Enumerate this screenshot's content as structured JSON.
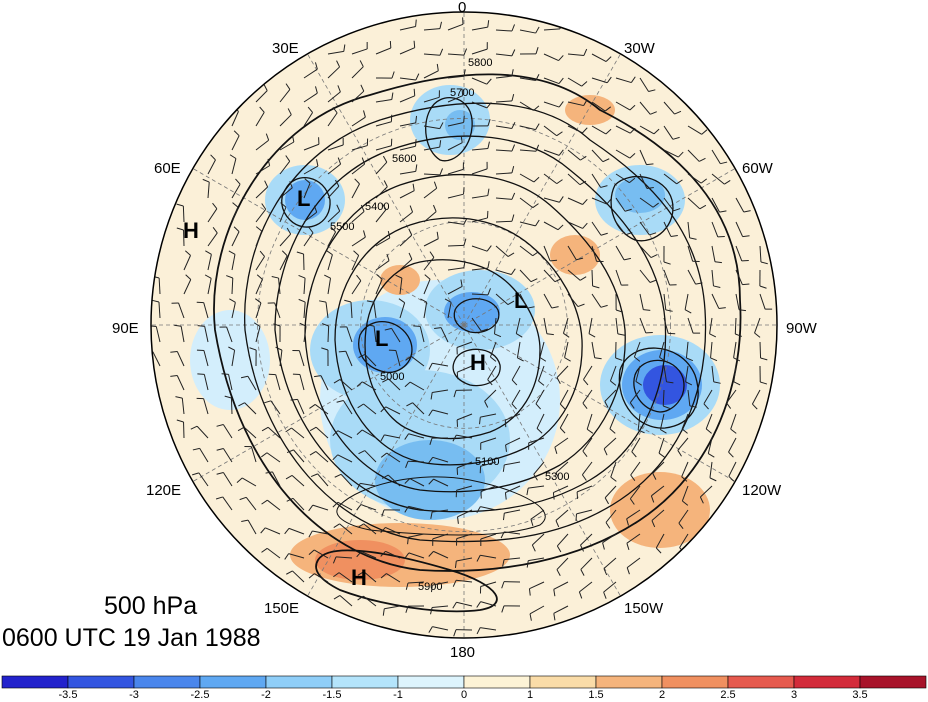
{
  "title": {
    "level": "500 hPa",
    "time": "0600 UTC 19 Jan 1988"
  },
  "longitude_labels": [
    "0",
    "30W",
    "60W",
    "90W",
    "120W",
    "150W",
    "180",
    "150E",
    "120E",
    "90E",
    "60E",
    "30E"
  ],
  "pressure_centers": [
    {
      "type": "H",
      "location": "60E"
    },
    {
      "type": "L",
      "location": "40E"
    },
    {
      "type": "L",
      "location": "near pole, Canadian side"
    },
    {
      "type": "L",
      "location": "Siberia"
    },
    {
      "type": "H",
      "location": "near pole"
    },
    {
      "type": "H",
      "location": "North Pacific"
    }
  ],
  "contour_labels": [
    "5800",
    "5700",
    "5600",
    "5500",
    "5400",
    "5300",
    "5100",
    "5000",
    "5900"
  ],
  "colorbar": {
    "ticks": [
      "-3.5",
      "-3",
      "-2.5",
      "-2",
      "-1.5",
      "-1",
      "0",
      "1",
      "1.5",
      "2",
      "2.5",
      "3",
      "3.5"
    ],
    "colors": [
      "#2222cc",
      "#3355e0",
      "#4a86ec",
      "#5fa8f2",
      "#8fcef8",
      "#b4e4fb",
      "#ddf4fd",
      "#fdf3d6",
      "#fadca8",
      "#f5b47c",
      "#f09060",
      "#e65a4e",
      "#d32b3a",
      "#a8132a"
    ]
  }
}
